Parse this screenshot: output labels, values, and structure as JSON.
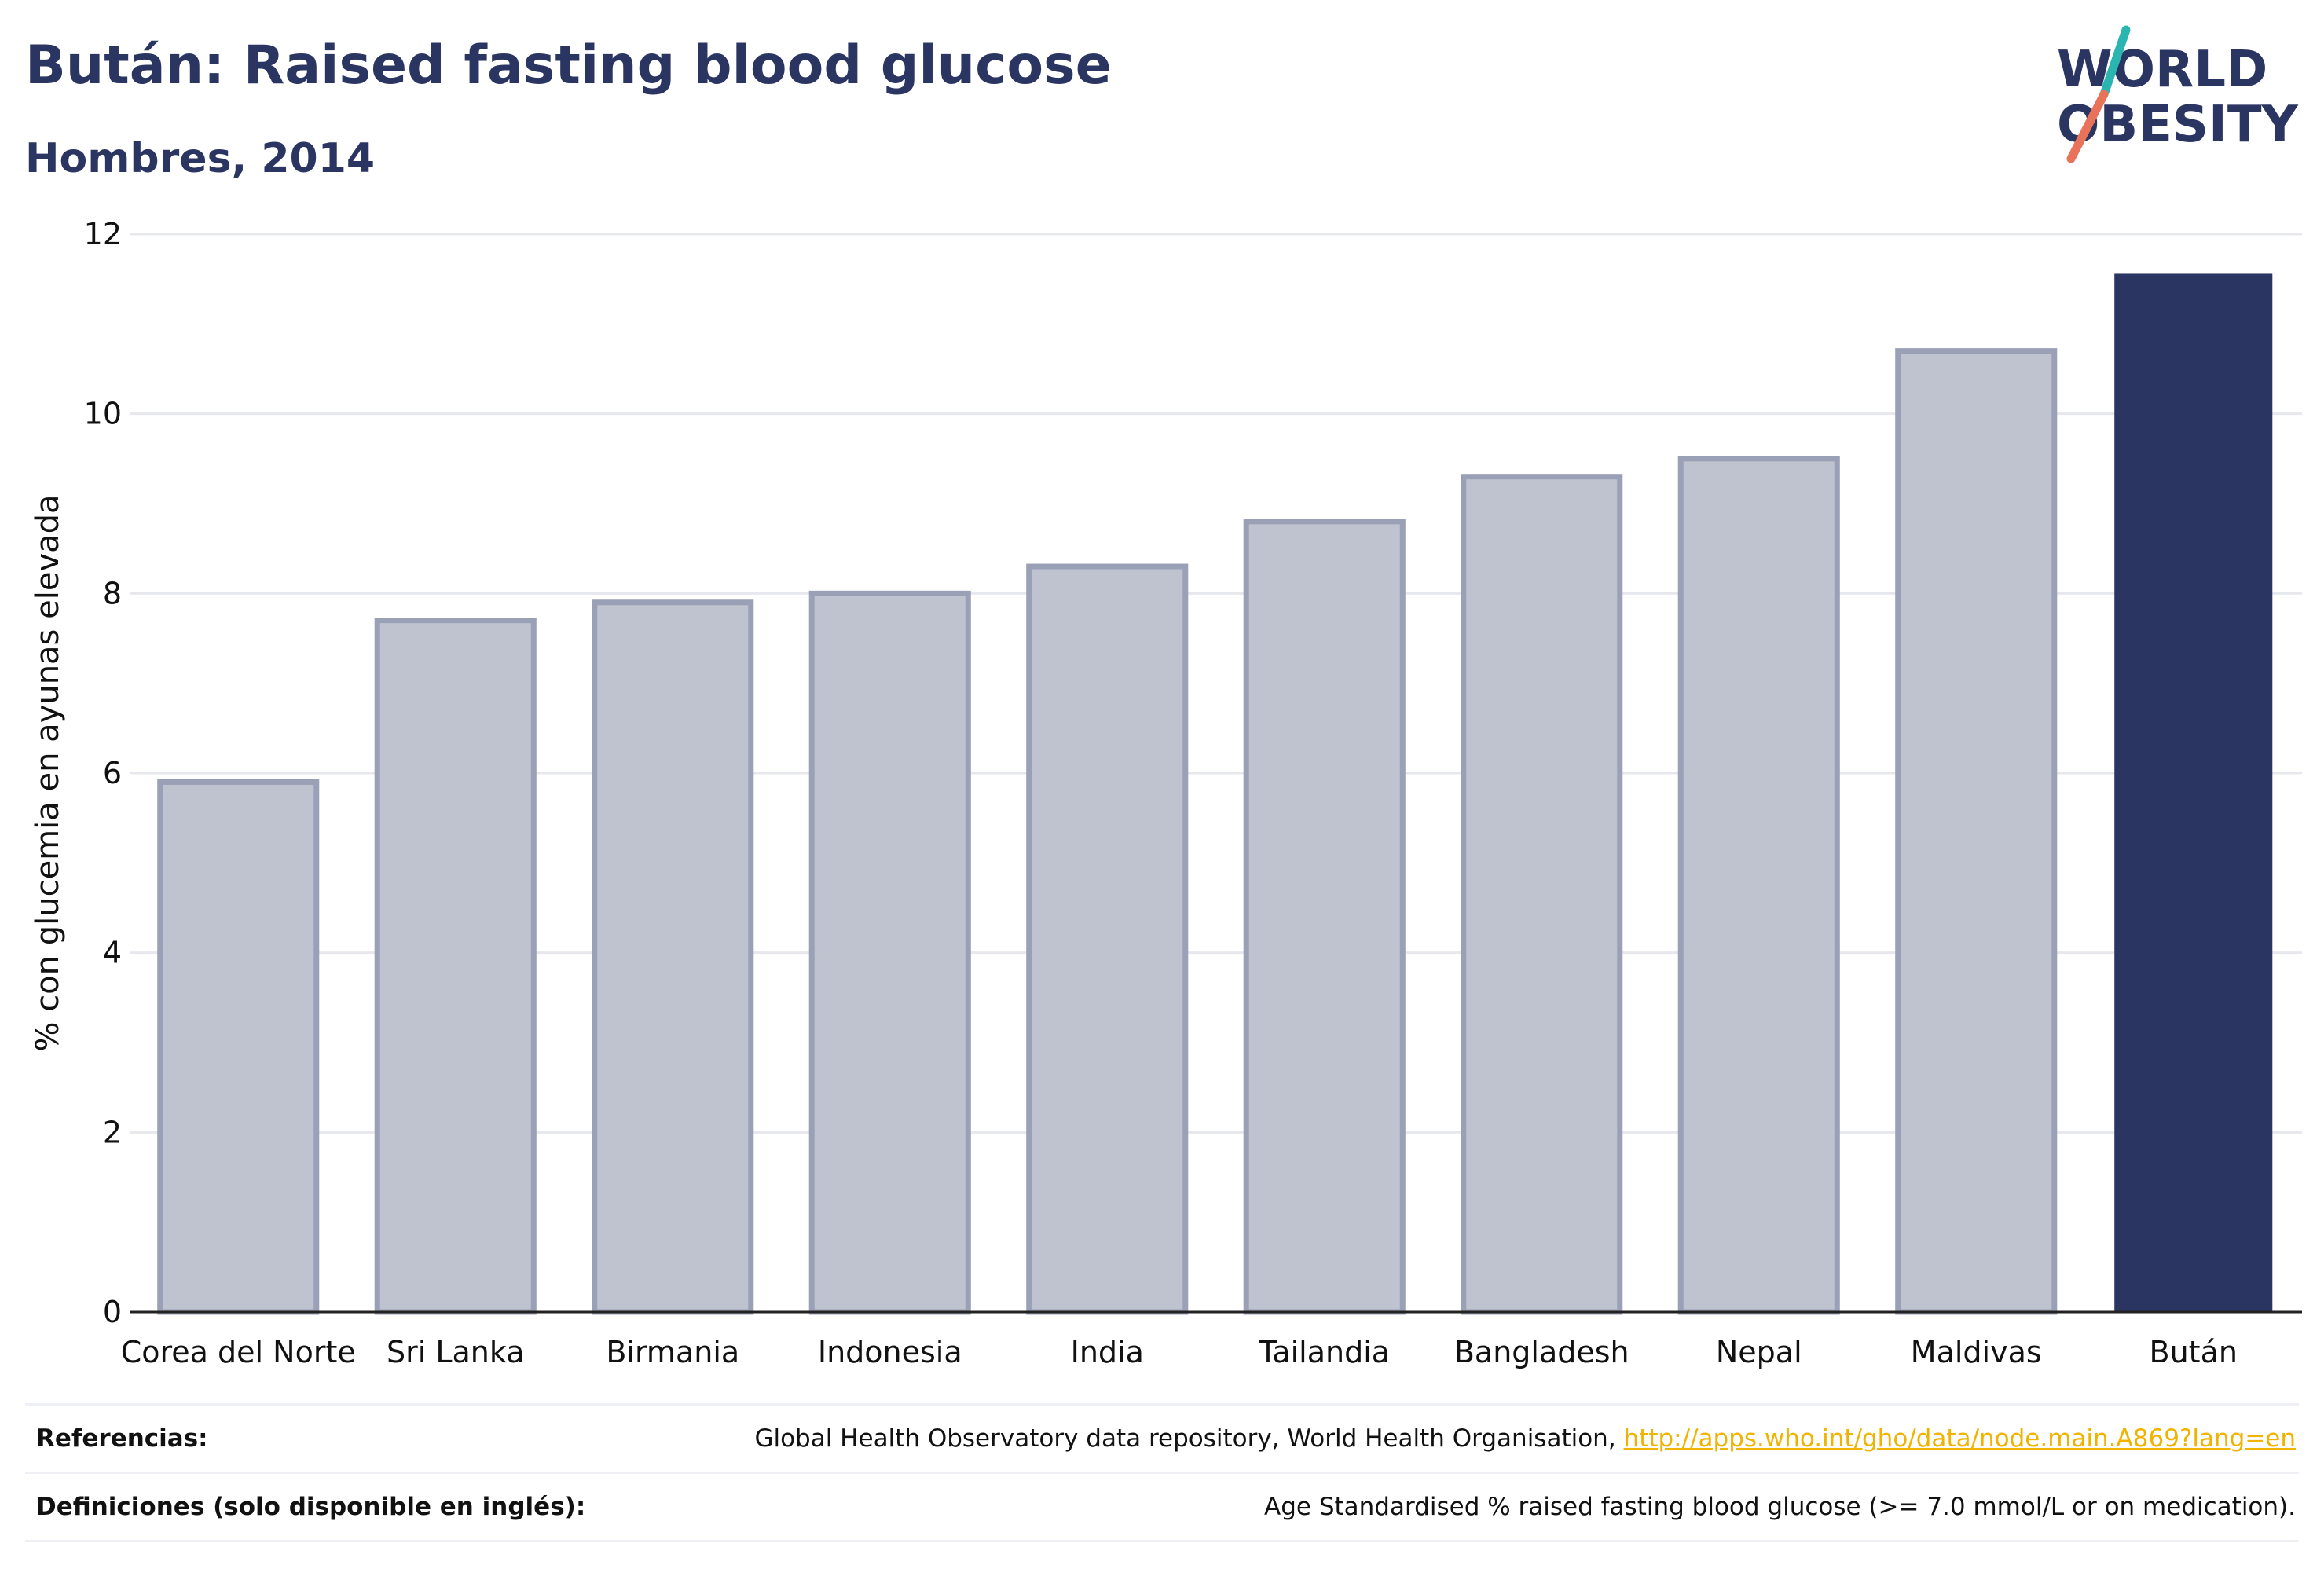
{
  "header": {
    "title": "Bután: Raised fasting blood glucose",
    "subtitle": "Hombres, 2014"
  },
  "logo": {
    "line1": "WORLD",
    "line2": "OBESITY"
  },
  "chart_data": {
    "type": "bar",
    "title": "Bután: Raised fasting blood glucose",
    "subtitle": "Hombres, 2014",
    "xlabel": "",
    "ylabel": "% con glucemia en ayunas elevada",
    "ylim": [
      0,
      12
    ],
    "yticks": [
      0,
      2,
      4,
      6,
      8,
      10,
      12
    ],
    "grid": true,
    "categories": [
      "Corea del Norte",
      "Sri Lanka",
      "Birmania",
      "Indonesia",
      "India",
      "Tailandia",
      "Bangladesh",
      "Nepal",
      "Maldivas",
      "Bután"
    ],
    "values": [
      5.9,
      7.7,
      7.9,
      8.0,
      8.3,
      8.8,
      9.3,
      9.5,
      10.7,
      11.55
    ],
    "highlight": "Bután",
    "colors": {
      "highlight": "#2b3561",
      "other_fill": "#bfc2cf",
      "other_stroke": "#9aa0b6"
    }
  },
  "footer": {
    "references_label": "Referencias:",
    "references_text": "Global Health Observatory data repository, World Health Organisation, ",
    "references_link": "http://apps.who.int/gho/data/node.main.A869?lang=en",
    "definitions_label": "Definiciones (solo disponible en inglés):",
    "definitions_text": "Age Standardised % raised fasting blood glucose (>= 7.0 mmol/L or on medication)."
  }
}
